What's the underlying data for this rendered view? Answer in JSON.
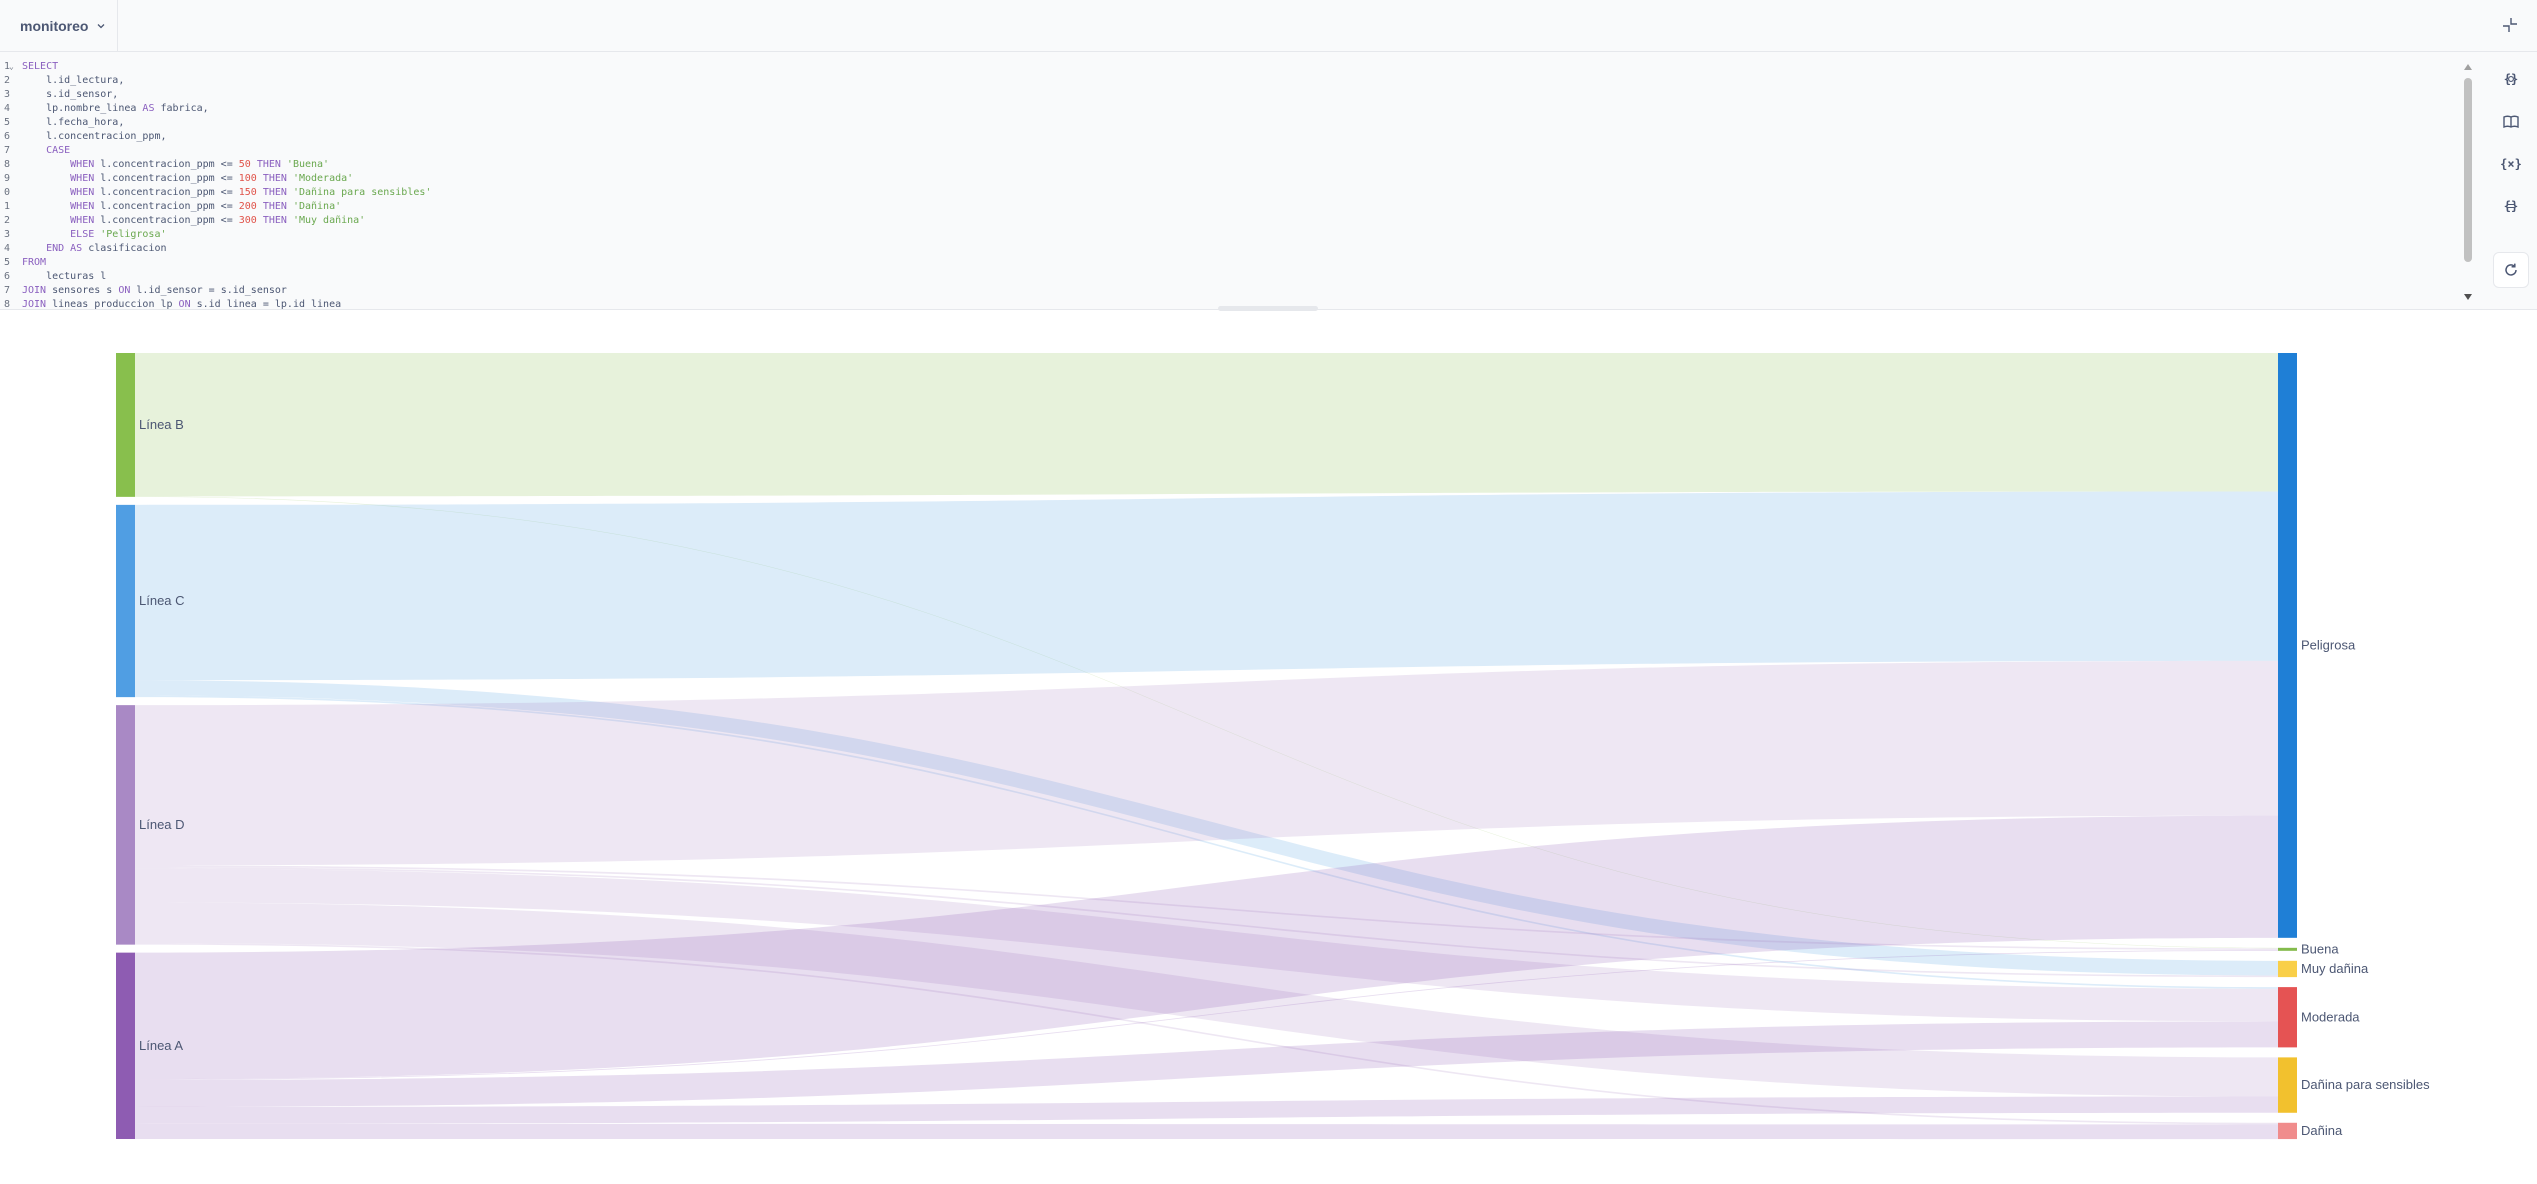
{
  "topbar": {
    "database": "monitoreo"
  },
  "editor": {
    "lines": [
      {
        "n": "1",
        "fold": true,
        "segs": [
          [
            "kw",
            "SELECT"
          ]
        ]
      },
      {
        "n": "2",
        "segs": [
          [
            "",
            "    l.id_lectura,"
          ]
        ]
      },
      {
        "n": "3",
        "segs": [
          [
            "",
            "    s.id_sensor,"
          ]
        ]
      },
      {
        "n": "4",
        "segs": [
          [
            "",
            "    lp.nombre_linea "
          ],
          [
            "kw",
            "AS"
          ],
          [
            "",
            " fabrica,"
          ]
        ]
      },
      {
        "n": "5",
        "segs": [
          [
            "",
            "    l.fecha_hora,"
          ]
        ]
      },
      {
        "n": "6",
        "segs": [
          [
            "",
            "    l.concentracion_ppm,"
          ]
        ]
      },
      {
        "n": "7",
        "segs": [
          [
            "kw",
            "    CASE"
          ]
        ]
      },
      {
        "n": "8",
        "segs": [
          [
            "kw",
            "        WHEN"
          ],
          [
            "",
            " l.concentracion_ppm <= "
          ],
          [
            "num",
            "50"
          ],
          [
            "kw",
            " THEN"
          ],
          [
            "str",
            " 'Buena'"
          ]
        ]
      },
      {
        "n": "9",
        "segs": [
          [
            "kw",
            "        WHEN"
          ],
          [
            "",
            " l.concentracion_ppm <= "
          ],
          [
            "num",
            "100"
          ],
          [
            "kw",
            " THEN"
          ],
          [
            "str",
            " 'Moderada'"
          ]
        ]
      },
      {
        "n": "0",
        "segs": [
          [
            "kw",
            "        WHEN"
          ],
          [
            "",
            " l.concentracion_ppm <= "
          ],
          [
            "num",
            "150"
          ],
          [
            "kw",
            " THEN"
          ],
          [
            "str",
            " 'Dañina para sensibles'"
          ]
        ]
      },
      {
        "n": "1",
        "segs": [
          [
            "kw",
            "        WHEN"
          ],
          [
            "",
            " l.concentracion_ppm <= "
          ],
          [
            "num",
            "200"
          ],
          [
            "kw",
            " THEN"
          ],
          [
            "str",
            " 'Dañina'"
          ]
        ]
      },
      {
        "n": "2",
        "segs": [
          [
            "kw",
            "        WHEN"
          ],
          [
            "",
            " l.concentracion_ppm <= "
          ],
          [
            "num",
            "300"
          ],
          [
            "kw",
            " THEN"
          ],
          [
            "str",
            " 'Muy dañina'"
          ]
        ]
      },
      {
        "n": "3",
        "segs": [
          [
            "kw",
            "        ELSE"
          ],
          [
            "str",
            " 'Peligrosa'"
          ]
        ]
      },
      {
        "n": "4",
        "segs": [
          [
            "kw",
            "    END AS"
          ],
          [
            "",
            " clasificacion"
          ]
        ]
      },
      {
        "n": "5",
        "segs": [
          [
            "kw",
            "FROM"
          ]
        ]
      },
      {
        "n": "6",
        "segs": [
          [
            "",
            "    lecturas l"
          ]
        ]
      },
      {
        "n": "7",
        "segs": [
          [
            "kw",
            "JOIN"
          ],
          [
            "",
            " sensores s "
          ],
          [
            "kw",
            "ON"
          ],
          [
            "",
            " l.id_sensor = s.id_sensor"
          ]
        ]
      },
      {
        "n": "8",
        "segs": [
          [
            "kw",
            "JOIN"
          ],
          [
            "",
            " lineas_produccion lp "
          ],
          [
            "kw",
            "ON"
          ],
          [
            "",
            " s.id_linea = lp.id_linea"
          ]
        ]
      }
    ]
  },
  "tools": [
    {
      "name": "snippets-button",
      "icon": "braces-icon",
      "label": "{}"
    },
    {
      "name": "data-reference-button",
      "icon": "book-icon",
      "label": ""
    },
    {
      "name": "variables-button",
      "icon": "variables-icon",
      "label": "{x}"
    },
    {
      "name": "preview-query-button",
      "icon": "preview-icon",
      "label": "{}"
    }
  ],
  "colors": {
    "Línea B": "#88bf4d",
    "Línea C": "#509ee3",
    "Línea D": "#a989c5",
    "Línea A": "#8e5cb2",
    "Peligrosa": "#1f7fd6",
    "Buena": "#84bb4c",
    "Muy dañina": "#f9cf48",
    "Moderada": "#e55353",
    "Dañina para sensibles": "#f2c12e",
    "Dañina": "#f08c8c"
  },
  "chart_data": {
    "type": "sankey",
    "sources": [
      "Línea B",
      "Línea C",
      "Línea D",
      "Línea A"
    ],
    "targets": [
      "Peligrosa",
      "Buena",
      "Muy dañina",
      "Moderada",
      "Dañina para sensibles",
      "Dañina"
    ],
    "links": [
      {
        "source": "Línea B",
        "target": "Peligrosa",
        "value": 85
      },
      {
        "source": "Línea B",
        "target": "Buena",
        "value": 0.3
      },
      {
        "source": "Línea C",
        "target": "Peligrosa",
        "value": 104
      },
      {
        "source": "Línea C",
        "target": "Muy dañina",
        "value": 9
      },
      {
        "source": "Línea C",
        "target": "Moderada",
        "value": 1
      },
      {
        "source": "Línea D",
        "target": "Peligrosa",
        "value": 95
      },
      {
        "source": "Línea D",
        "target": "Buena",
        "value": 1
      },
      {
        "source": "Línea D",
        "target": "Muy dañina",
        "value": 1
      },
      {
        "source": "Línea D",
        "target": "Moderada",
        "value": 20
      },
      {
        "source": "Línea D",
        "target": "Dañina para sensibles",
        "value": 24
      },
      {
        "source": "Línea D",
        "target": "Dañina",
        "value": 1
      },
      {
        "source": "Línea A",
        "target": "Peligrosa",
        "value": 75
      },
      {
        "source": "Línea A",
        "target": "Buena",
        "value": 0.5
      },
      {
        "source": "Línea A",
        "target": "Moderada",
        "value": 16
      },
      {
        "source": "Línea A",
        "target": "Dañina para sensibles",
        "value": 10
      },
      {
        "source": "Línea A",
        "target": "Dañina",
        "value": 9
      }
    ]
  }
}
